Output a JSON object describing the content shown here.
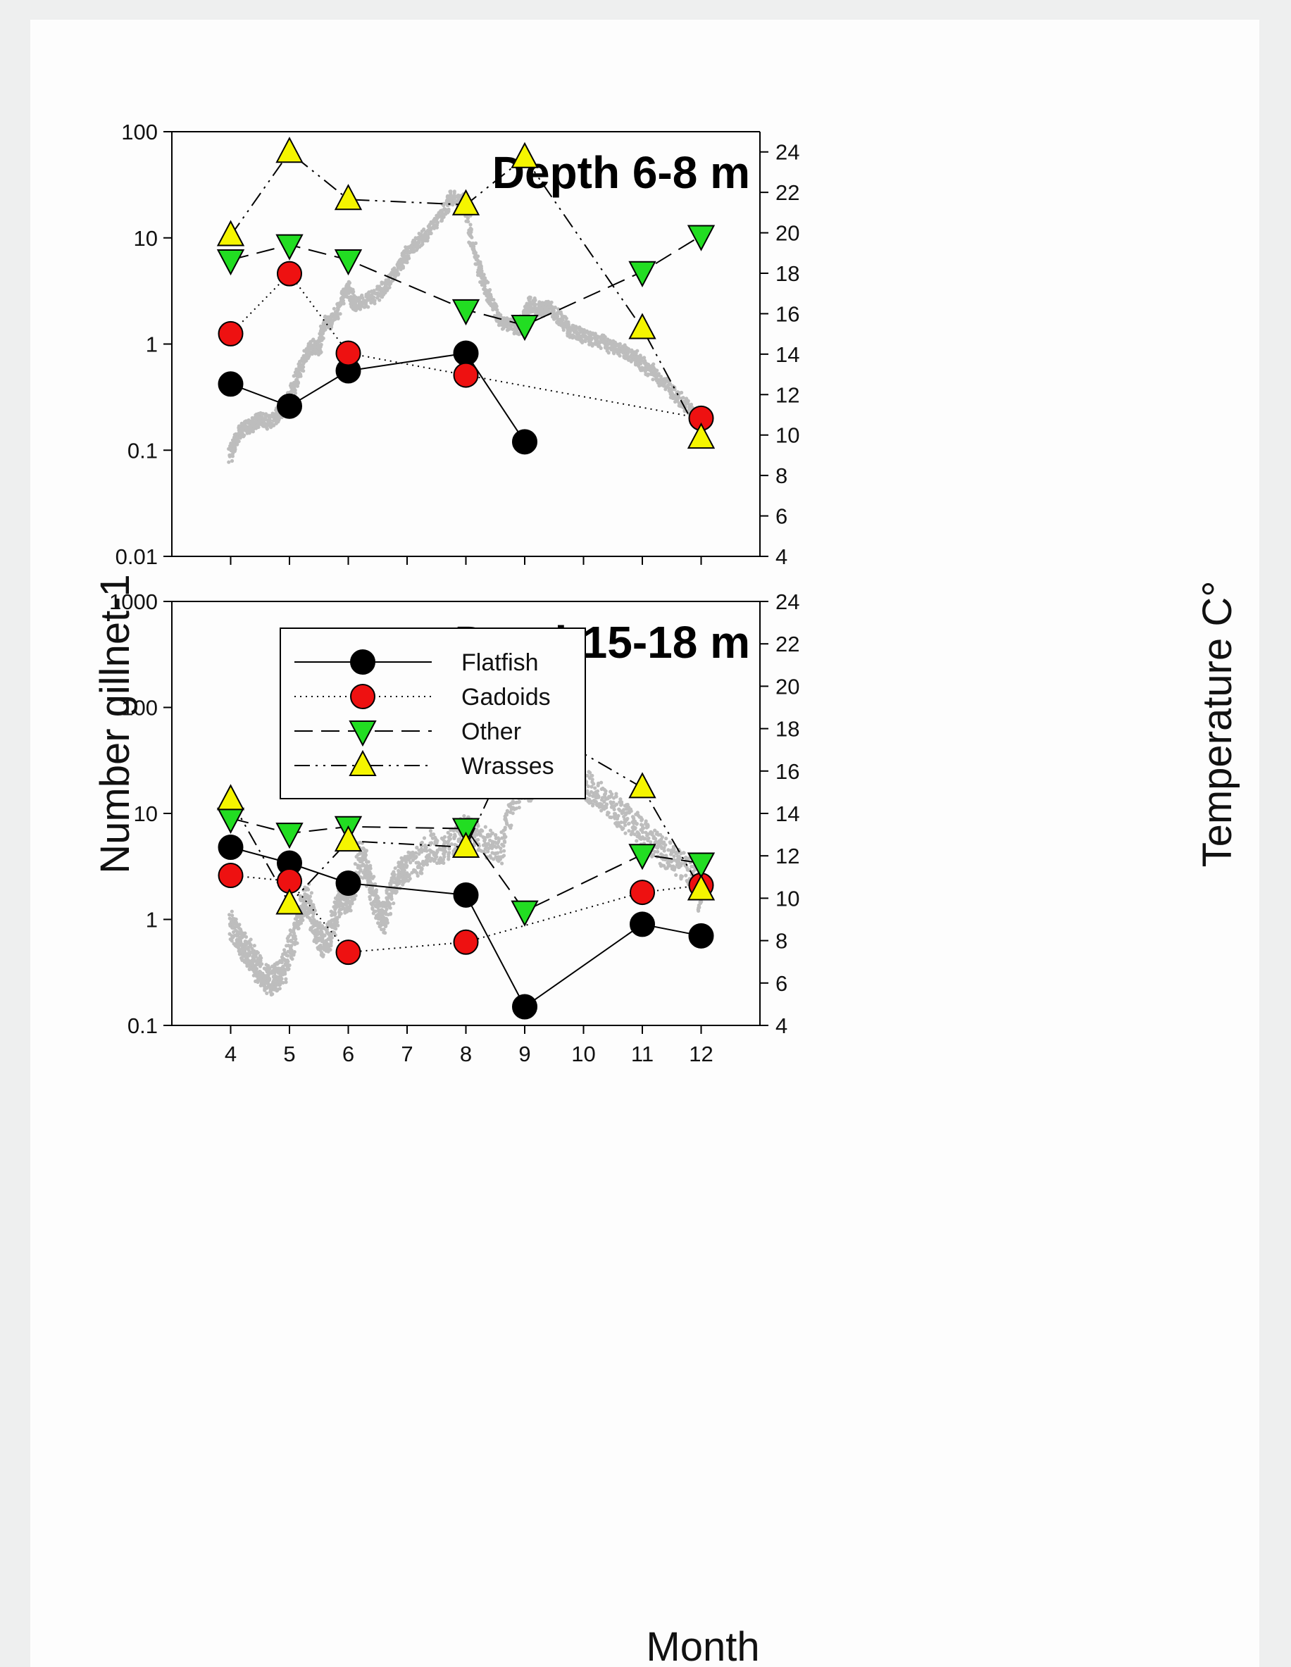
{
  "chart_data": {
    "type": "line",
    "shared": {
      "xlabel": "Month",
      "ylabel_left": "Number gillnet-1",
      "ylabel_right": "Temperature C°",
      "x_ticks": [
        "4",
        "5",
        "6",
        "7",
        "8",
        "9",
        "10",
        "11",
        "12"
      ],
      "x_range": [
        3,
        13
      ],
      "legend": [
        {
          "name": "Flatfish",
          "marker": "circle",
          "color": "#000000",
          "dash": "solid"
        },
        {
          "name": "Gadoids",
          "marker": "circle",
          "color": "#ee1111",
          "dash": "dotted"
        },
        {
          "name": "Other",
          "marker": "triangle-down",
          "color": "#22dd22",
          "dash": "dashed"
        },
        {
          "name": "Wrasses",
          "marker": "triangle-up",
          "color": "#f5f500",
          "dash": "dash-dot-dot"
        }
      ],
      "legend_placement": "top-left of lower panel",
      "temperature_color": "#bdbdbd"
    },
    "panels": [
      {
        "title": "Depth 6-8 m",
        "y_scale": "log",
        "ylim_left": [
          0.01,
          100
        ],
        "y_ticks_left": [
          "0.01",
          "0.1",
          "1",
          "10",
          "100"
        ],
        "ylim_right": [
          4,
          25
        ],
        "y_ticks_right": [
          "4",
          "6",
          "8",
          "10",
          "12",
          "14",
          "16",
          "18",
          "20",
          "22",
          "24"
        ],
        "series": [
          {
            "name": "Flatfish",
            "x": [
              4,
              5,
              6,
              8,
              9
            ],
            "values": [
              0.42,
              0.26,
              0.56,
              0.82,
              0.12
            ]
          },
          {
            "name": "Gadoids",
            "x": [
              4,
              5,
              6,
              8,
              12
            ],
            "values": [
              1.25,
              4.6,
              0.82,
              0.51,
              0.2
            ]
          },
          {
            "name": "Other",
            "x": [
              4,
              5,
              6,
              8,
              9,
              11,
              12
            ],
            "values": [
              6.2,
              8.6,
              6.2,
              2.1,
              1.5,
              4.8,
              10.5
            ]
          },
          {
            "name": "Wrasses",
            "x": [
              4,
              5,
              6,
              8,
              9,
              11,
              12
            ],
            "values": [
              10.5,
              64,
              23,
              20.5,
              57,
              1.4,
              0.13
            ]
          }
        ],
        "temperature": {
          "x": [
            4.0,
            4.1,
            4.2,
            4.35,
            4.5,
            4.65,
            4.8,
            5.0,
            5.1,
            5.25,
            5.4,
            5.5,
            5.6,
            5.75,
            5.9,
            6.0,
            6.1,
            6.3,
            6.5,
            6.7,
            6.9,
            7.0,
            7.2,
            7.4,
            7.6,
            7.75,
            7.9,
            8.0,
            8.1,
            8.25,
            8.4,
            8.55,
            8.7,
            8.9,
            9.0,
            9.1,
            9.25,
            9.4,
            9.6,
            9.75,
            9.9,
            10.1,
            10.3,
            10.5,
            10.7,
            10.9,
            11.1,
            11.3,
            11.5,
            11.7,
            11.9,
            12.05
          ],
          "y": [
            9.0,
            9.8,
            10.3,
            10.5,
            10.8,
            10.6,
            11.0,
            11.8,
            12.6,
            13.8,
            14.4,
            14.3,
            15.5,
            15.7,
            16.8,
            17.3,
            16.5,
            16.6,
            17.0,
            17.6,
            18.5,
            19.0,
            19.6,
            20.2,
            21.0,
            21.8,
            21.5,
            21.6,
            19.5,
            18.0,
            16.8,
            15.8,
            15.5,
            15.2,
            16.0,
            16.5,
            16.2,
            16.3,
            15.8,
            15.2,
            15.0,
            14.8,
            14.6,
            14.3,
            14.1,
            13.8,
            13.3,
            12.8,
            12.2,
            11.6,
            11.0,
            10.4
          ]
        }
      },
      {
        "title": "Depth15-18 m",
        "y_scale": "log",
        "ylim_left": [
          0.1,
          1000
        ],
        "y_ticks_left": [
          "0.1",
          "1",
          "10",
          "100",
          "1000"
        ],
        "ylim_right": [
          4,
          24
        ],
        "y_ticks_right": [
          "4",
          "6",
          "8",
          "10",
          "12",
          "14",
          "16",
          "18",
          "20",
          "22",
          "24"
        ],
        "series": [
          {
            "name": "Flatfish",
            "x": [
              4,
              5,
              6,
              8,
              9,
              11,
              12
            ],
            "values": [
              4.8,
              3.4,
              2.2,
              1.7,
              0.15,
              0.9,
              0.7
            ]
          },
          {
            "name": "Gadoids",
            "x": [
              4,
              5,
              6,
              8,
              11,
              12
            ],
            "values": [
              2.6,
              2.3,
              0.49,
              0.61,
              1.8,
              2.1
            ]
          },
          {
            "name": "Other",
            "x": [
              4,
              5,
              6,
              8,
              9,
              11,
              12
            ],
            "values": [
              9,
              6.5,
              7.5,
              7.2,
              1.2,
              4.1,
              3.4
            ]
          },
          {
            "name": "Wrasses",
            "x": [
              4,
              5,
              6,
              8,
              9,
              11,
              12
            ],
            "values": [
              13.5,
              1.4,
              5.5,
              4.8,
              77,
              17.5,
              1.9
            ]
          }
        ],
        "temperature": {
          "x": [
            4.0,
            4.1,
            4.2,
            4.3,
            4.4,
            4.5,
            4.6,
            4.7,
            4.8,
            4.9,
            5.0,
            5.1,
            5.2,
            5.3,
            5.4,
            5.5,
            5.6,
            5.7,
            5.8,
            5.9,
            6.0,
            6.1,
            6.2,
            6.3,
            6.4,
            6.5,
            6.6,
            6.7,
            6.8,
            6.9,
            7.0,
            7.2,
            7.4,
            7.6,
            7.8,
            8.0,
            8.2,
            8.4,
            8.6,
            8.8,
            9.0,
            9.1,
            9.2,
            9.3,
            9.4,
            9.5,
            9.7,
            9.9,
            10.1,
            10.3,
            10.5,
            10.7,
            10.9,
            11.1,
            11.3,
            11.5,
            11.7,
            11.9,
            12.0
          ],
          "y": [
            8.8,
            8.3,
            7.8,
            7.4,
            7.0,
            6.5,
            6.2,
            6.1,
            6.3,
            6.6,
            7.5,
            8.5,
            9.5,
            10.0,
            9.0,
            8.1,
            7.9,
            8.2,
            9.5,
            10.2,
            9.8,
            10.5,
            12.0,
            11.5,
            10.5,
            9.5,
            9.0,
            10.0,
            10.8,
            11.2,
            11.5,
            11.8,
            12.5,
            12.2,
            12.8,
            13.2,
            13.0,
            12.5,
            12.3,
            14.5,
            15.5,
            15.2,
            15.8,
            16.1,
            16.5,
            16.3,
            16.0,
            15.6,
            15.2,
            14.8,
            14.3,
            13.8,
            13.4,
            12.8,
            12.3,
            11.9,
            11.5,
            11.0,
            9.8
          ]
        }
      }
    ]
  }
}
